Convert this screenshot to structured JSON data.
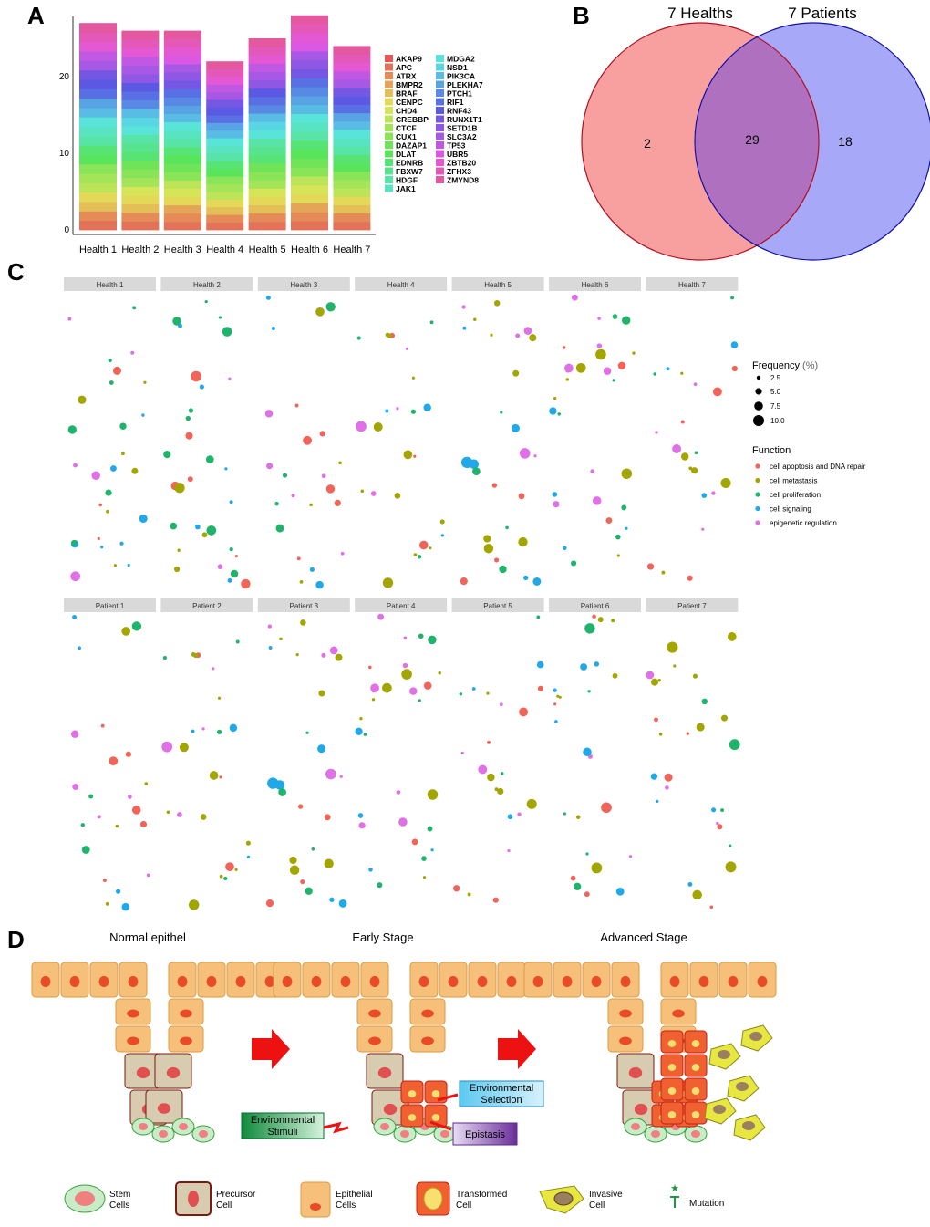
{
  "panels": {
    "a": "A",
    "b": "B",
    "c": "C",
    "d": "D"
  },
  "colors": {
    "apoptosis": "#f0645a",
    "metastasis": "#a3a500",
    "proliferation": "#1fb36b",
    "signaling": "#20a8e8",
    "epigenetic": "#e070e6",
    "venn_left": "#f8a0a0",
    "venn_right": "#a8a8f8",
    "venn_overlap": "#b070c0",
    "strip": "#d9d9d9"
  },
  "chart_a": {
    "type": "bar",
    "categories": [
      "Health 1",
      "Health 2",
      "Health 3",
      "Health 4",
      "Health 5",
      "Health 6",
      "Health 7"
    ],
    "values": [
      27,
      26,
      26,
      22,
      25,
      28,
      24
    ],
    "yticks": [
      "0",
      "10",
      "20"
    ],
    "ylim": [
      0,
      28
    ],
    "genes": [
      "AKAP9",
      "APC",
      "ATRX",
      "BMPR2",
      "BRAF",
      "CENPC",
      "CHD4",
      "CREBBP",
      "CTCF",
      "CUX1",
      "DAZAP1",
      "DLAT",
      "EDNRB",
      "FBXW7",
      "HDGF",
      "JAK1",
      "MDGA2",
      "NSD1",
      "PIK3CA",
      "PLEKHA7",
      "PTCH1",
      "RIF1",
      "RNF43",
      "RUNX1T1",
      "SETD1B",
      "SLC3A2",
      "TP53",
      "UBR5",
      "ZBTB20",
      "ZFHX3",
      "ZMYND8"
    ]
  },
  "venn": {
    "left_title": "7 Healths",
    "right_title": "7 Patients",
    "left_only": "2",
    "overlap": "29",
    "right_only": "18"
  },
  "chart_c": {
    "type": "scatter",
    "health_strips": [
      "Health 1",
      "Health 2",
      "Health 3",
      "Health 4",
      "Health 5",
      "Health 6",
      "Health 7"
    ],
    "patient_strips": [
      "Patient 1",
      "Patient 2",
      "Patient 3",
      "Patient 4",
      "Patient 5",
      "Patient 6",
      "Patient 7"
    ],
    "size_legend_title": "Frequency",
    "size_legend_unit": "(%)",
    "size_values": [
      "2.5",
      "5.0",
      "7.5",
      "10.0"
    ],
    "function_legend_title": "Function",
    "functions": [
      {
        "label": "cell apoptosis and DNA repair",
        "color": "#f0645a"
      },
      {
        "label": "cell metastasis",
        "color": "#a3a500"
      },
      {
        "label": "cell proliferation",
        "color": "#1fb36b"
      },
      {
        "label": "cell signaling",
        "color": "#20a8e8"
      },
      {
        "label": "epigenetic regulation",
        "color": "#e070e6"
      }
    ]
  },
  "diagram_d": {
    "stage_titles": [
      "Normal  epithel",
      "Early Stage",
      "Advanced Stage"
    ],
    "env_stimuli": [
      "Environmental",
      "Stimuli"
    ],
    "env_selection": [
      "Environmental",
      "Selection"
    ],
    "epistasis": "Epistasis",
    "legend": [
      {
        "lines": [
          "Stem",
          "Cells"
        ]
      },
      {
        "lines": [
          "Precursor",
          "Cell"
        ]
      },
      {
        "lines": [
          "Epithelial",
          "Cells"
        ]
      },
      {
        "lines": [
          "Transformed",
          "Cell"
        ]
      },
      {
        "lines": [
          "Invasive",
          "Cell"
        ]
      },
      {
        "lines": [
          "Mutation"
        ]
      }
    ]
  }
}
